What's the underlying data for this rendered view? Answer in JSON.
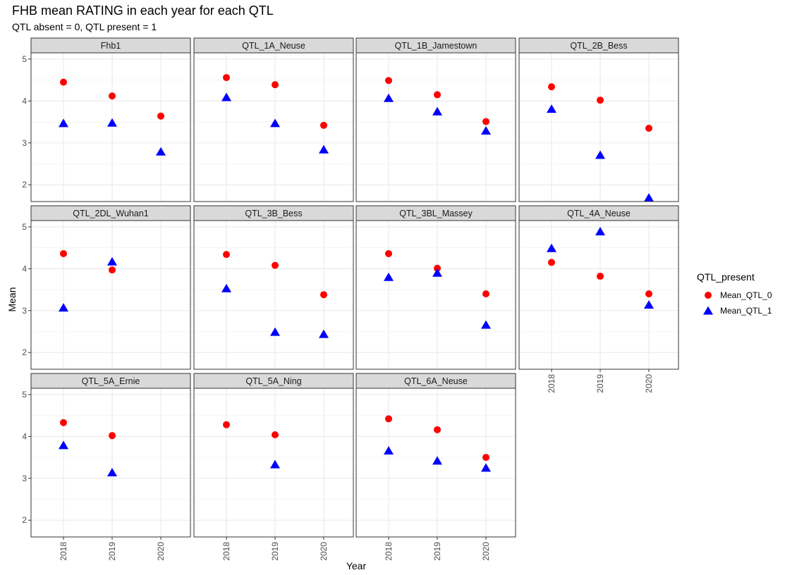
{
  "chart_data": {
    "type": "scatter",
    "title": "FHB mean RATING in each year for each QTL",
    "subtitle": "QTL absent = 0, QTL present = 1",
    "xlabel": "Year",
    "ylabel": "Mean",
    "x_categories": [
      "2018",
      "2019",
      "2020"
    ],
    "y_ticks": [
      2,
      3,
      4,
      5
    ],
    "ylim": [
      1.6,
      5.15
    ],
    "grid": true,
    "legend": {
      "title": "QTL_present",
      "position": "right",
      "entries": [
        {
          "name": "Mean_QTL_0",
          "color": "#ff0000",
          "shape": "circle"
        },
        {
          "name": "Mean_QTL_1",
          "color": "#0000ff",
          "shape": "triangle"
        }
      ]
    },
    "panels": [
      {
        "name": "Fhb1",
        "series": [
          {
            "name": "Mean_QTL_0",
            "values": [
              4.45,
              4.12,
              3.64
            ]
          },
          {
            "name": "Mean_QTL_1",
            "values": [
              3.47,
              3.48,
              2.79
            ]
          }
        ]
      },
      {
        "name": "QTL_1A_Neuse",
        "series": [
          {
            "name": "Mean_QTL_0",
            "values": [
              4.56,
              4.39,
              3.42
            ]
          },
          {
            "name": "Mean_QTL_1",
            "values": [
              4.09,
              3.47,
              2.84
            ]
          }
        ]
      },
      {
        "name": "QTL_1B_Jamestown",
        "series": [
          {
            "name": "Mean_QTL_0",
            "values": [
              4.49,
              4.15,
              3.51
            ]
          },
          {
            "name": "Mean_QTL_1",
            "values": [
              4.07,
              3.75,
              3.29
            ]
          }
        ]
      },
      {
        "name": "QTL_2B_Bess",
        "series": [
          {
            "name": "Mean_QTL_0",
            "values": [
              4.34,
              4.02,
              3.35
            ]
          },
          {
            "name": "Mean_QTL_1",
            "values": [
              3.81,
              2.71,
              1.69
            ]
          }
        ]
      },
      {
        "name": "QTL_2DL_Wuhan1",
        "series": [
          {
            "name": "Mean_QTL_0",
            "values": [
              4.36,
              3.97,
              null
            ]
          },
          {
            "name": "Mean_QTL_1",
            "values": [
              3.07,
              4.17,
              null
            ]
          }
        ]
      },
      {
        "name": "QTL_3B_Bess",
        "series": [
          {
            "name": "Mean_QTL_0",
            "values": [
              4.34,
              4.08,
              3.38
            ]
          },
          {
            "name": "Mean_QTL_1",
            "values": [
              3.53,
              2.49,
              2.44
            ]
          }
        ]
      },
      {
        "name": "QTL_3BL_Massey",
        "series": [
          {
            "name": "Mean_QTL_0",
            "values": [
              4.36,
              4.01,
              3.4
            ]
          },
          {
            "name": "Mean_QTL_1",
            "values": [
              3.8,
              3.9,
              2.66
            ]
          }
        ]
      },
      {
        "name": "QTL_4A_Neuse",
        "series": [
          {
            "name": "Mean_QTL_0",
            "values": [
              4.15,
              3.82,
              3.4
            ]
          },
          {
            "name": "Mean_QTL_1",
            "values": [
              4.49,
              4.89,
              3.14
            ]
          }
        ]
      },
      {
        "name": "QTL_5A_Ernie",
        "series": [
          {
            "name": "Mean_QTL_0",
            "values": [
              4.33,
              4.02,
              null
            ]
          },
          {
            "name": "Mean_QTL_1",
            "values": [
              3.79,
              3.14,
              null
            ]
          }
        ]
      },
      {
        "name": "QTL_5A_Ning",
        "series": [
          {
            "name": "Mean_QTL_0",
            "values": [
              4.28,
              4.04,
              null
            ]
          },
          {
            "name": "Mean_QTL_1",
            "values": [
              null,
              3.33,
              null
            ]
          }
        ]
      },
      {
        "name": "QTL_6A_Neuse",
        "series": [
          {
            "name": "Mean_QTL_0",
            "values": [
              4.42,
              4.16,
              3.5
            ]
          },
          {
            "name": "Mean_QTL_1",
            "values": [
              3.66,
              3.42,
              3.25
            ]
          }
        ]
      }
    ]
  }
}
